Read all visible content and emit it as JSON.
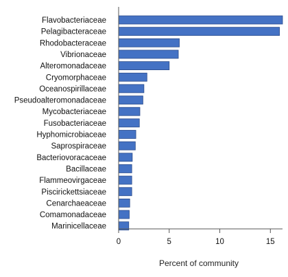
{
  "chart_data": {
    "type": "bar",
    "orientation": "horizontal",
    "categories": [
      "Flavobacteriaceae",
      "Pelagibacteraceae",
      "Rhodobacteraceae",
      "Vibrionaceae",
      "Alteromonadaceae",
      "Cryomorphaceae",
      "Oceanospirillaceae",
      "Pseudoalteromonadaceae",
      "Mycobacteriaceae",
      "Fusobacteriaceae",
      "Hyphomicrobiaceae",
      "Saprospiraceae",
      "Bacteriovoracaceae",
      "Bacillaceae",
      "Flammeovirgaceae",
      "Piscirickettsiaceae",
      "Cenarchaeaceae",
      "Comamonadaceae",
      "Marinicellaceae"
    ],
    "values": [
      16.2,
      15.9,
      6.0,
      5.9,
      5.0,
      2.8,
      2.5,
      2.4,
      2.1,
      2.05,
      1.7,
      1.65,
      1.35,
      1.3,
      1.3,
      1.3,
      1.1,
      1.05,
      1.0
    ],
    "xlabel": "Percent of community",
    "ylabel": "",
    "title": "",
    "xlim": [
      0,
      16.2
    ],
    "xticks": [
      0,
      5,
      10,
      15
    ],
    "grid": false,
    "bar_color": "#4472c4",
    "bar_edge_color": "#2b4c8c"
  }
}
